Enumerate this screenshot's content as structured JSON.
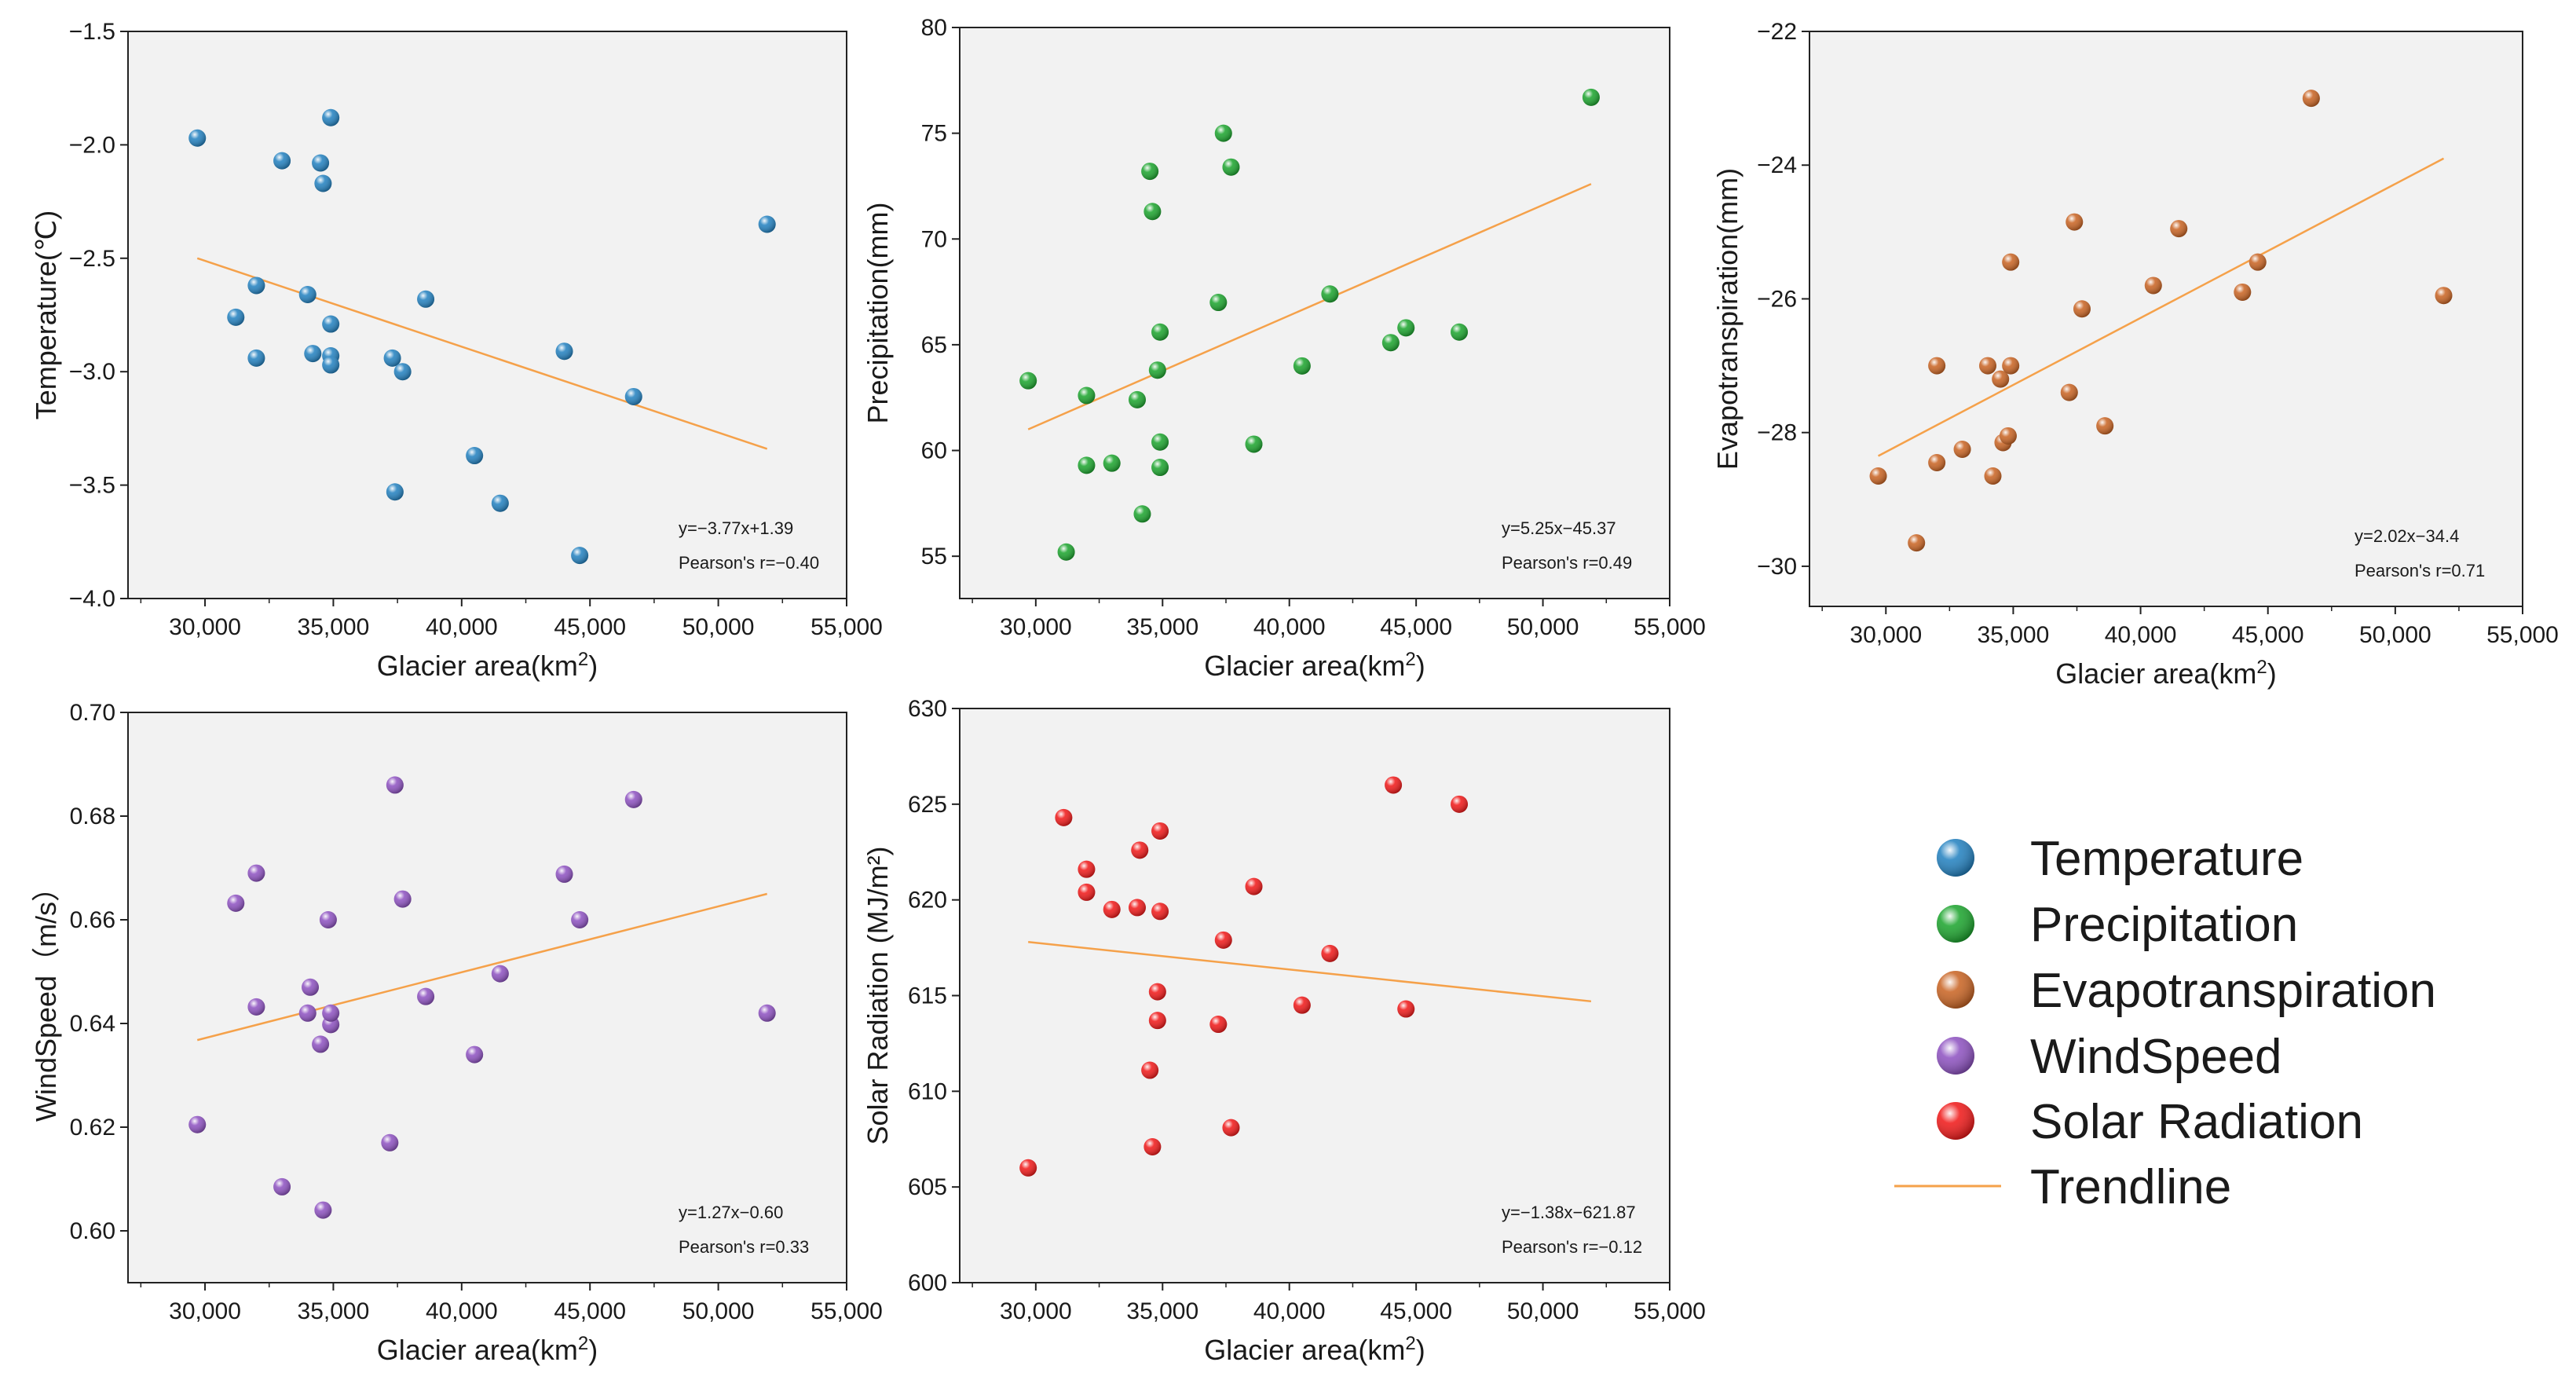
{
  "xlabel": "Glacier area(km²)",
  "x_ticks": [
    30000,
    35000,
    40000,
    45000,
    50000,
    55000
  ],
  "x_tick_labels": [
    "30,000",
    "35,000",
    "40,000",
    "45,000",
    "50,000",
    "55,000"
  ],
  "legend": {
    "items": [
      {
        "label": "Temperature",
        "color": "#1f7fbf",
        "kind": "marker"
      },
      {
        "label": "Precipitation",
        "color": "#18a32a",
        "kind": "marker"
      },
      {
        "label": "Evapotranspiration",
        "color": "#c8611f",
        "kind": "marker"
      },
      {
        "label": "WindSpeed",
        "color": "#8c4fc0",
        "kind": "marker"
      },
      {
        "label": "Solar Radiation",
        "color": "#f01515",
        "kind": "marker"
      },
      {
        "label": "Trendline",
        "color": "#f5a14a",
        "kind": "line"
      }
    ]
  },
  "chart_data": [
    {
      "type": "scatter",
      "name": "temperature",
      "ylabel": "Temperature(℃)",
      "xlabel": "Glacier area(km²)",
      "xlim": [
        27000,
        55000
      ],
      "ylim": [
        -4.0,
        -1.5
      ],
      "y_ticks": [
        -4.0,
        -3.5,
        -3.0,
        -2.5,
        -2.0,
        -1.5
      ],
      "y_tick_labels": [
        "−4.0",
        "−3.5",
        "−3.0",
        "−2.5",
        "−2.0",
        "−1.5"
      ],
      "color": "#1f7fbf",
      "x": [
        29700,
        33000,
        34500,
        34900,
        34600,
        32000,
        34000,
        31200,
        38600,
        34900,
        32000,
        34200,
        34900,
        34900,
        37300,
        37700,
        40500,
        41500,
        37400,
        44000,
        44600,
        46700,
        51900
      ],
      "y": [
        -1.97,
        -2.07,
        -2.08,
        -1.88,
        -2.17,
        -2.62,
        -2.66,
        -2.76,
        -2.68,
        -2.79,
        -2.94,
        -2.92,
        -2.93,
        -2.97,
        -2.94,
        -3.0,
        -3.37,
        -3.58,
        -3.53,
        -2.91,
        -3.81,
        -3.11,
        -2.35
      ],
      "trendline": {
        "x": [
          29700,
          51900
        ],
        "y": [
          -2.5,
          -3.34
        ]
      },
      "stats": {
        "equation": "y=−3.77x+1.39",
        "pearson": "Pearson's r=−0.40"
      }
    },
    {
      "type": "scatter",
      "name": "precipitation",
      "ylabel": "Precipitation(mm)",
      "xlabel": "Glacier area(km²)",
      "xlim": [
        27000,
        55000
      ],
      "ylim": [
        53,
        80
      ],
      "y_ticks": [
        55,
        60,
        65,
        70,
        75,
        80
      ],
      "y_tick_labels": [
        "55",
        "60",
        "65",
        "70",
        "75",
        "80"
      ],
      "color": "#18a32a",
      "x": [
        29700,
        31200,
        32000,
        32000,
        33000,
        34200,
        34000,
        34500,
        34600,
        34900,
        34800,
        34900,
        34900,
        37200,
        37400,
        37700,
        38600,
        40500,
        41600,
        44000,
        44600,
        46700,
        51900
      ],
      "y": [
        63.3,
        55.2,
        62.6,
        59.3,
        59.4,
        57.0,
        62.4,
        73.2,
        71.3,
        65.6,
        63.8,
        60.4,
        59.2,
        67.0,
        75.0,
        73.4,
        60.3,
        64.0,
        67.4,
        65.1,
        65.8,
        65.6,
        76.7
      ],
      "trendline": {
        "x": [
          29700,
          51900
        ],
        "y": [
          61.0,
          72.6
        ]
      },
      "stats": {
        "equation": "y=5.25x−45.37",
        "pearson": "Pearson's r=0.49"
      }
    },
    {
      "type": "scatter",
      "name": "evapotranspiration",
      "ylabel": "Evapotranspiration(mm)",
      "xlabel": "Glacier area(km²)",
      "xlim": [
        27000,
        55000
      ],
      "ylim": [
        -30.6,
        -22
      ],
      "y_ticks": [
        -30,
        -28,
        -26,
        -24,
        -22
      ],
      "y_tick_labels": [
        "−30",
        "−28",
        "−26",
        "−24",
        "−22"
      ],
      "color": "#c8611f",
      "x": [
        29700,
        31200,
        32000,
        32000,
        33000,
        34000,
        34200,
        34500,
        34600,
        34800,
        34900,
        34900,
        37200,
        37400,
        37700,
        38600,
        40500,
        41500,
        44000,
        44600,
        46700,
        51900
      ],
      "y": [
        -28.65,
        -29.65,
        -28.45,
        -27.0,
        -28.25,
        -27.0,
        -28.65,
        -27.2,
        -28.15,
        -28.05,
        -25.45,
        -27.0,
        -27.4,
        -24.85,
        -26.15,
        -27.9,
        -25.8,
        -24.95,
        -25.9,
        -25.45,
        -23.0,
        -25.95
      ],
      "trendline": {
        "x": [
          29700,
          51900
        ],
        "y": [
          -28.35,
          -23.9
        ]
      },
      "stats": {
        "equation": "y=2.02x−34.4",
        "pearson": "Pearson's r=0.71"
      }
    },
    {
      "type": "scatter",
      "name": "windspeed",
      "ylabel": "WindSpeed（m/s）",
      "xlabel": "Glacier area(km²)",
      "xlim": [
        27000,
        55000
      ],
      "ylim": [
        0.59,
        0.7
      ],
      "y_ticks": [
        0.6,
        0.62,
        0.64,
        0.66,
        0.68,
        0.7
      ],
      "y_tick_labels": [
        "0.60",
        "0.62",
        "0.64",
        "0.66",
        "0.68",
        "0.70"
      ],
      "color": "#8c4fc0",
      "x": [
        29700,
        31200,
        32000,
        32000,
        33000,
        34000,
        34100,
        34500,
        34600,
        34900,
        34800,
        34900,
        37200,
        37400,
        37700,
        38600,
        40500,
        41500,
        44000,
        44600,
        46700,
        51900
      ],
      "y": [
        0.6205,
        0.6632,
        0.669,
        0.6432,
        0.6085,
        0.642,
        0.647,
        0.636,
        0.604,
        0.6398,
        0.66,
        0.642,
        0.617,
        0.686,
        0.664,
        0.6452,
        0.634,
        0.6496,
        0.6688,
        0.66,
        0.6832,
        0.642
      ],
      "trendline": {
        "x": [
          29700,
          51900
        ],
        "y": [
          0.6368,
          0.665
        ]
      },
      "stats": {
        "equation": "y=1.27x−0.60",
        "pearson": "Pearson's r=0.33"
      }
    },
    {
      "type": "scatter",
      "name": "solar-radiation",
      "ylabel": "Solar Radiation (MJ/m²)",
      "xlabel": "Glacier area(km²)",
      "xlim": [
        27000,
        55000
      ],
      "ylim": [
        600,
        630
      ],
      "y_ticks": [
        600,
        605,
        610,
        615,
        620,
        625,
        630
      ],
      "y_tick_labels": [
        "600",
        "605",
        "610",
        "615",
        "620",
        "625",
        "630"
      ],
      "color": "#f01515",
      "x": [
        29700,
        31100,
        32000,
        32000,
        33000,
        34000,
        34100,
        34500,
        34600,
        34900,
        34800,
        34800,
        34900,
        37200,
        37400,
        37700,
        38600,
        40500,
        41600,
        44100,
        44600,
        46700
      ],
      "y": [
        606.0,
        624.3,
        621.6,
        620.4,
        619.5,
        619.6,
        622.6,
        611.1,
        607.1,
        623.6,
        615.2,
        613.7,
        619.4,
        613.5,
        617.9,
        608.1,
        620.7,
        614.5,
        617.2,
        626.0,
        614.3,
        625.0
      ],
      "trendline": {
        "x": [
          29700,
          51900
        ],
        "y": [
          617.8,
          614.7
        ]
      },
      "stats": {
        "equation": "y=−1.38x−621.87",
        "pearson": "Pearson's r=−0.12"
      }
    }
  ]
}
